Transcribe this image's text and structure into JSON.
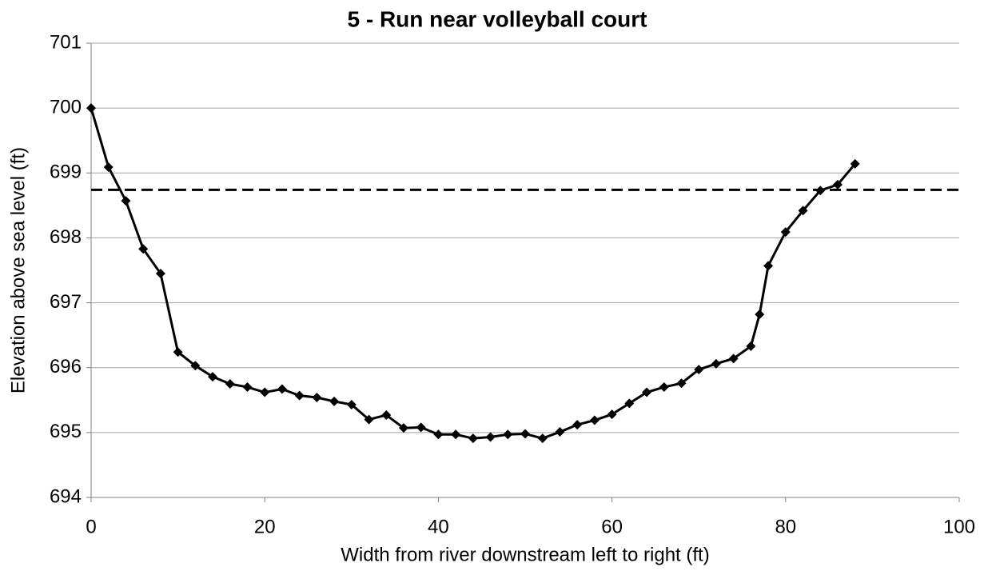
{
  "chart_data": {
    "type": "line",
    "title": "5 - Run near volleyball court",
    "x_label": "Width from river downstream left to right (ft)",
    "y_label": "Elevation above sea level (ft)",
    "x": [
      0,
      2,
      4,
      6,
      8,
      10,
      12,
      14,
      16,
      18,
      20,
      22,
      24,
      26,
      28,
      30,
      32,
      34,
      36,
      38,
      40,
      42,
      44,
      46,
      48,
      50,
      52,
      54,
      56,
      58,
      60,
      62,
      64,
      66,
      68,
      70,
      72,
      74,
      76,
      77,
      78,
      80,
      82,
      84,
      86,
      88
    ],
    "series": [
      {
        "color": "#000000",
        "values": [
          700,
          699.09,
          698.57,
          697.83,
          697.45,
          696.24,
          696.03,
          695.86,
          695.75,
          695.7,
          695.62,
          695.67,
          695.57,
          695.54,
          695.48,
          695.43,
          695.2,
          695.27,
          695.07,
          695.08,
          694.97,
          694.97,
          694.91,
          694.93,
          694.97,
          694.98,
          694.91,
          695.01,
          695.12,
          695.19,
          695.28,
          695.45,
          695.62,
          695.7,
          695.76,
          695.97,
          696.06,
          696.14,
          696.33,
          696.82,
          697.57,
          698.09,
          698.42,
          698.73,
          698.82,
          699.14
        ]
      }
    ],
    "hline": 698.74,
    "xlim": [
      0,
      100
    ],
    "xticks": [
      0,
      20,
      40,
      60,
      80,
      100
    ],
    "ylim": [
      694,
      701
    ],
    "yticks": [
      694,
      695,
      696,
      697,
      698,
      699,
      700,
      701
    ],
    "grid": true
  }
}
